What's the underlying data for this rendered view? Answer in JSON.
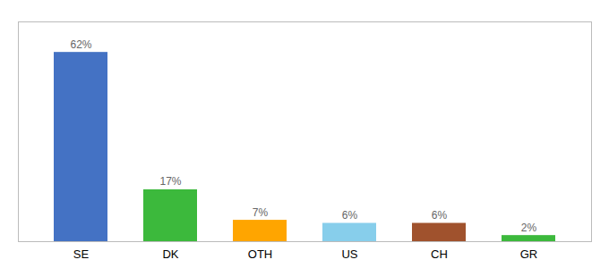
{
  "chart_data": {
    "type": "bar",
    "categories": [
      "SE",
      "DK",
      "OTH",
      "US",
      "CH",
      "GR"
    ],
    "values": [
      62,
      17,
      7,
      6,
      6,
      2
    ],
    "value_labels": [
      "62%",
      "17%",
      "7%",
      "6%",
      "6%",
      "2%"
    ],
    "colors": [
      "#4472C4",
      "#3CB93C",
      "#FFA500",
      "#87CEEB",
      "#A0522D",
      "#3CB93C"
    ],
    "ylim": [
      0,
      72
    ],
    "data_labels": true,
    "tick_labels": "x"
  }
}
